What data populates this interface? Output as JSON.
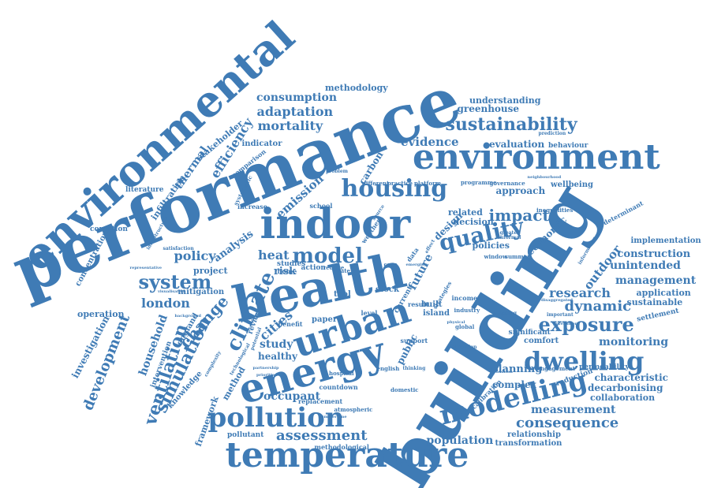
{
  "color": "#3f7bb5",
  "words": [
    {
      "text": "building",
      "name": "word-building"
    },
    {
      "text": "performance",
      "name": "word-performance"
    },
    {
      "text": "health",
      "name": "word-health"
    },
    {
      "text": "environmental",
      "name": "word-environmental"
    },
    {
      "text": "environment",
      "name": "word-environment"
    },
    {
      "text": "indoor",
      "name": "word-indoor"
    },
    {
      "text": "temperature",
      "name": "word-temperature"
    },
    {
      "text": "energy",
      "name": "word-energy"
    },
    {
      "text": "urban",
      "name": "word-urban"
    },
    {
      "text": "housing",
      "name": "word-housing"
    },
    {
      "text": "modelling",
      "name": "word-modelling"
    },
    {
      "text": "dwelling",
      "name": "word-dwelling"
    },
    {
      "text": "pollution",
      "name": "word-pollution"
    },
    {
      "text": "sustainability",
      "name": "word-sustainability"
    },
    {
      "text": "quality",
      "name": "word-quality"
    },
    {
      "text": "model",
      "name": "word-model"
    },
    {
      "text": "climate",
      "name": "word-climate"
    },
    {
      "text": "system",
      "name": "word-system"
    },
    {
      "text": "exposure",
      "name": "word-exposure"
    },
    {
      "text": "simulation",
      "name": "word-simulation"
    },
    {
      "text": "ventilation",
      "name": "word-ventilation"
    },
    {
      "text": "change",
      "name": "word-change"
    },
    {
      "text": "assessment",
      "name": "word-assessment"
    },
    {
      "text": "consequence",
      "name": "word-consequence"
    },
    {
      "text": "dynamic",
      "name": "word-dynamic"
    },
    {
      "text": "impact",
      "name": "word-impact"
    },
    {
      "text": "mortality",
      "name": "word-mortality"
    },
    {
      "text": "consumption",
      "name": "word-consumption"
    },
    {
      "text": "adaptation",
      "name": "word-adaptation"
    },
    {
      "text": "evidence",
      "name": "word-evidence"
    },
    {
      "text": "london",
      "name": "word-london"
    },
    {
      "text": "policy",
      "name": "word-policy"
    },
    {
      "text": "development",
      "name": "word-development"
    },
    {
      "text": "efficiency",
      "name": "word-efficiency"
    },
    {
      "text": "thermal",
      "name": "word-thermal"
    },
    {
      "text": "occupant",
      "name": "word-occupant"
    },
    {
      "text": "population",
      "name": "word-population"
    },
    {
      "text": "research",
      "name": "word-research"
    },
    {
      "text": "measurement",
      "name": "word-measurement"
    },
    {
      "text": "unintended",
      "name": "word-unintended"
    },
    {
      "text": "management",
      "name": "word-management"
    },
    {
      "text": "construction",
      "name": "word-construction"
    },
    {
      "text": "monitoring",
      "name": "word-monitoring"
    },
    {
      "text": "evaluation",
      "name": "word-evaluation"
    },
    {
      "text": "understanding",
      "name": "word-understanding"
    },
    {
      "text": "greenhouse",
      "name": "word-greenhouse"
    },
    {
      "text": "methodology",
      "name": "word-methodology"
    },
    {
      "text": "approach",
      "name": "word-approach"
    },
    {
      "text": "planning",
      "name": "word-planning"
    },
    {
      "text": "cities",
      "name": "word-cities"
    },
    {
      "text": "outdoor",
      "name": "word-outdoor"
    },
    {
      "text": "household",
      "name": "word-household"
    },
    {
      "text": "investigation",
      "name": "word-investigation"
    },
    {
      "text": "complex",
      "name": "word-complex"
    },
    {
      "text": "emission",
      "name": "word-emission"
    },
    {
      "text": "indicator",
      "name": "word-indicator"
    },
    {
      "text": "heat",
      "name": "word-heat"
    },
    {
      "text": "study",
      "name": "word-study"
    },
    {
      "text": "healthy",
      "name": "word-healthy"
    },
    {
      "text": "framework",
      "name": "word-framework"
    },
    {
      "text": "knowledge",
      "name": "word-knowledge"
    },
    {
      "text": "infiltration",
      "name": "word-infiltration"
    },
    {
      "text": "stakeholder",
      "name": "word-stakeholder"
    },
    {
      "text": "collaboration",
      "name": "word-collaboration"
    },
    {
      "text": "decarbonising",
      "name": "word-decarbonising"
    },
    {
      "text": "characteristic",
      "name": "word-characteristic"
    },
    {
      "text": "application",
      "name": "word-application"
    },
    {
      "text": "sustainable",
      "name": "word-sustainable"
    },
    {
      "text": "implementation",
      "name": "word-implementation"
    },
    {
      "text": "comfort",
      "name": "word-comfort"
    },
    {
      "text": "relationship",
      "name": "word-relationship"
    },
    {
      "text": "transformation",
      "name": "word-transformation"
    },
    {
      "text": "analysis",
      "name": "word-analysis"
    },
    {
      "text": "future",
      "name": "word-future"
    },
    {
      "text": "related",
      "name": "word-related"
    },
    {
      "text": "decision",
      "name": "word-decision"
    },
    {
      "text": "policies",
      "name": "word-policies"
    },
    {
      "text": "economic",
      "name": "word-economic"
    },
    {
      "text": "wellbeing",
      "name": "word-wellbeing"
    },
    {
      "text": "behaviour",
      "name": "word-behaviour"
    },
    {
      "text": "design",
      "name": "word-design"
    },
    {
      "text": "carbon",
      "name": "word-carbon"
    },
    {
      "text": "risk",
      "name": "word-risk"
    },
    {
      "text": "operation",
      "name": "word-operation"
    },
    {
      "text": "literature",
      "name": "word-literature"
    },
    {
      "text": "condition",
      "name": "word-condition"
    },
    {
      "text": "concentration",
      "name": "word-concentration"
    },
    {
      "text": "england",
      "name": "word-england"
    },
    {
      "text": "intervention",
      "name": "word-intervention"
    },
    {
      "text": "method",
      "name": "word-method"
    },
    {
      "text": "project",
      "name": "word-project"
    },
    {
      "text": "mitigation",
      "name": "word-mitigation"
    },
    {
      "text": "settlement",
      "name": "word-settlement"
    },
    {
      "text": "permeability",
      "name": "word-permeability"
    },
    {
      "text": "reduction",
      "name": "word-reduction"
    },
    {
      "text": "engagement",
      "name": "word-engagement"
    },
    {
      "text": "significant",
      "name": "word-significant"
    },
    {
      "text": "determinant",
      "name": "word-determinant"
    },
    {
      "text": "comparison",
      "name": "word-comparison"
    },
    {
      "text": "built",
      "name": "word-built"
    },
    {
      "text": "island",
      "name": "word-island"
    },
    {
      "text": "tool",
      "name": "word-tool"
    },
    {
      "text": "stock",
      "name": "word-stock"
    },
    {
      "text": "paper",
      "name": "word-paper"
    },
    {
      "text": "review",
      "name": "word-review"
    },
    {
      "text": "action",
      "name": "word-action"
    },
    {
      "text": "studies",
      "name": "word-studies"
    },
    {
      "text": "public",
      "name": "word-public"
    },
    {
      "text": "current",
      "name": "word-current"
    },
    {
      "text": "result",
      "name": "word-result"
    },
    {
      "text": "income",
      "name": "word-income"
    },
    {
      "text": "industry",
      "name": "word-industry"
    },
    {
      "text": "calibration",
      "name": "word-calibration"
    },
    {
      "text": "countdown",
      "name": "word-countdown"
    },
    {
      "text": "replacement",
      "name": "word-replacement"
    },
    {
      "text": "pollutant",
      "name": "word-pollutant"
    },
    {
      "text": "methodological",
      "name": "word-methodological"
    },
    {
      "text": "atmospheric",
      "name": "word-atmospheric"
    },
    {
      "text": "domestic",
      "name": "word-domestic"
    },
    {
      "text": "english",
      "name": "word-english"
    },
    {
      "text": "hospital",
      "name": "word-hospital"
    },
    {
      "text": "thinking",
      "name": "word-thinking"
    },
    {
      "text": "support",
      "name": "word-support"
    },
    {
      "text": "benefit",
      "name": "word-benefit"
    },
    {
      "text": "level",
      "name": "word-level"
    },
    {
      "text": "home",
      "name": "word-home"
    },
    {
      "text": "reduce",
      "name": "word-reduce"
    },
    {
      "text": "rate",
      "name": "word-rate"
    },
    {
      "text": "increase",
      "name": "word-increase"
    },
    {
      "text": "school",
      "name": "word-school"
    },
    {
      "text": "different",
      "name": "word-different"
    },
    {
      "text": "practice",
      "name": "word-practice"
    },
    {
      "text": "platform",
      "name": "word-platform"
    },
    {
      "text": "programme",
      "name": "word-programme"
    },
    {
      "text": "governance",
      "name": "word-governance"
    },
    {
      "text": "inequalities",
      "name": "word-inequalities"
    },
    {
      "text": "window",
      "name": "word-window"
    },
    {
      "text": "summer",
      "name": "word-summer"
    },
    {
      "text": "systematic",
      "name": "word-systematic"
    },
    {
      "text": "strategies",
      "name": "word-strategies"
    },
    {
      "text": "prediction",
      "name": "word-prediction"
    },
    {
      "text": "informal",
      "name": "word-informal"
    },
    {
      "text": "greater",
      "name": "word-greater"
    },
    {
      "text": "problem",
      "name": "word-problem"
    },
    {
      "text": "weather",
      "name": "word-weather"
    },
    {
      "text": "source",
      "name": "word-source"
    },
    {
      "text": "data",
      "name": "word-data"
    },
    {
      "text": "case",
      "name": "word-case"
    },
    {
      "text": "global",
      "name": "word-global"
    },
    {
      "text": "attention",
      "name": "word-attention"
    },
    {
      "text": "mapping",
      "name": "word-mapping"
    },
    {
      "text": "important",
      "name": "word-important"
    },
    {
      "text": "government",
      "name": "word-government"
    },
    {
      "text": "information",
      "name": "word-information"
    },
    {
      "text": "infrastructure",
      "name": "word-infrastructure"
    },
    {
      "text": "satisfaction",
      "name": "word-satisfaction"
    },
    {
      "text": "background",
      "name": "word-background"
    },
    {
      "text": "complexity",
      "name": "word-complexity"
    },
    {
      "text": "technological",
      "name": "word-technological"
    },
    {
      "text": "partnership",
      "name": "word-partnership"
    },
    {
      "text": "priorities",
      "name": "word-priorities"
    },
    {
      "text": "summertime",
      "name": "word-summertime"
    },
    {
      "text": "representative",
      "name": "word-representative"
    },
    {
      "text": "potential",
      "name": "word-potential"
    },
    {
      "text": "physical",
      "name": "word-physical"
    },
    {
      "text": "effect",
      "name": "word-effect"
    },
    {
      "text": "emerging",
      "name": "word-emerging"
    },
    {
      "text": "visualisation",
      "name": "word-visualisation"
    },
    {
      "text": "disaggregated",
      "name": "word-disaggregated"
    },
    {
      "text": "validation",
      "name": "word-validation"
    },
    {
      "text": "neighbourhood",
      "name": "word-neighbourhood"
    }
  ]
}
